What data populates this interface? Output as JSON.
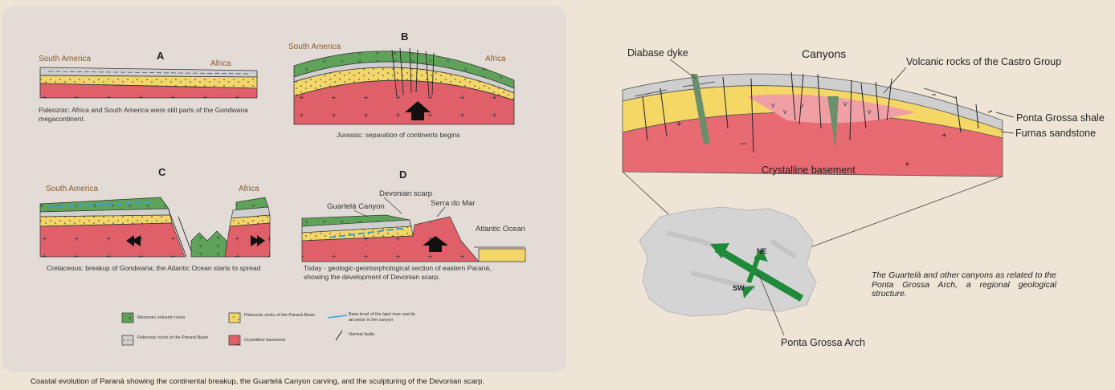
{
  "panels": {
    "A": {
      "letter": "A",
      "left_label": "South America",
      "right_label": "Africa",
      "caption": "Paleozoic: Africa and South America were still parts of the Gondwana megacontinent."
    },
    "B": {
      "letter": "B",
      "left_label": "South America",
      "right_label": "Africa",
      "caption": "Jurassic: separation of continents begins"
    },
    "C": {
      "letter": "C",
      "left_label": "South America",
      "right_label": "Africa",
      "caption": "Cretaceous: breakup of Gondwana; the Atlantic Ocean starts to spread"
    },
    "D": {
      "letter": "D",
      "labels": [
        "Devonian scarp",
        "Guartelá Canyon",
        "Serra do Mar",
        "Atlantic Ocean"
      ],
      "caption": "Today - geologic-geomorphological section of eastern Paraná, showing the development of Devonian scarp."
    }
  },
  "legend": [
    {
      "text": "Mesozoic volcanic rocks",
      "color": "#5fa35a"
    },
    {
      "text": "Paleozoic rocks of the Paraná Basin",
      "color": "#f2d66a"
    },
    {
      "text": "Base level of the Iapó river and its ancestor in the canyon",
      "color": "#3aa0d8"
    },
    {
      "text": "Paleozoic rocks of the Paraná Basin",
      "color": "#cfcfcf"
    },
    {
      "text": "Crystalline basement",
      "color": "#e0606a"
    },
    {
      "text": "Normal faults",
      "color": "#222222"
    }
  ],
  "figure_caption": "Coastal evolution of Paraná showing the continental breakup, the Guartelá Canyon carving, and the sculpturing of the Devonian scarp.",
  "right": {
    "labels": {
      "diabase": "Diabase dyke",
      "canyons": "Canyons",
      "castro": "Volcanic rocks of the Castro Group",
      "shale": "Ponta Grossa shale",
      "furnas": "Furnas sandstone",
      "basement": "Crystalline basement",
      "arch": "Ponta Grossa Arch",
      "ne": "NE",
      "sw": "SW"
    },
    "note": "The Guartelá and other canyons as related to the Ponta Grossa Arch, a regional geological structure."
  }
}
